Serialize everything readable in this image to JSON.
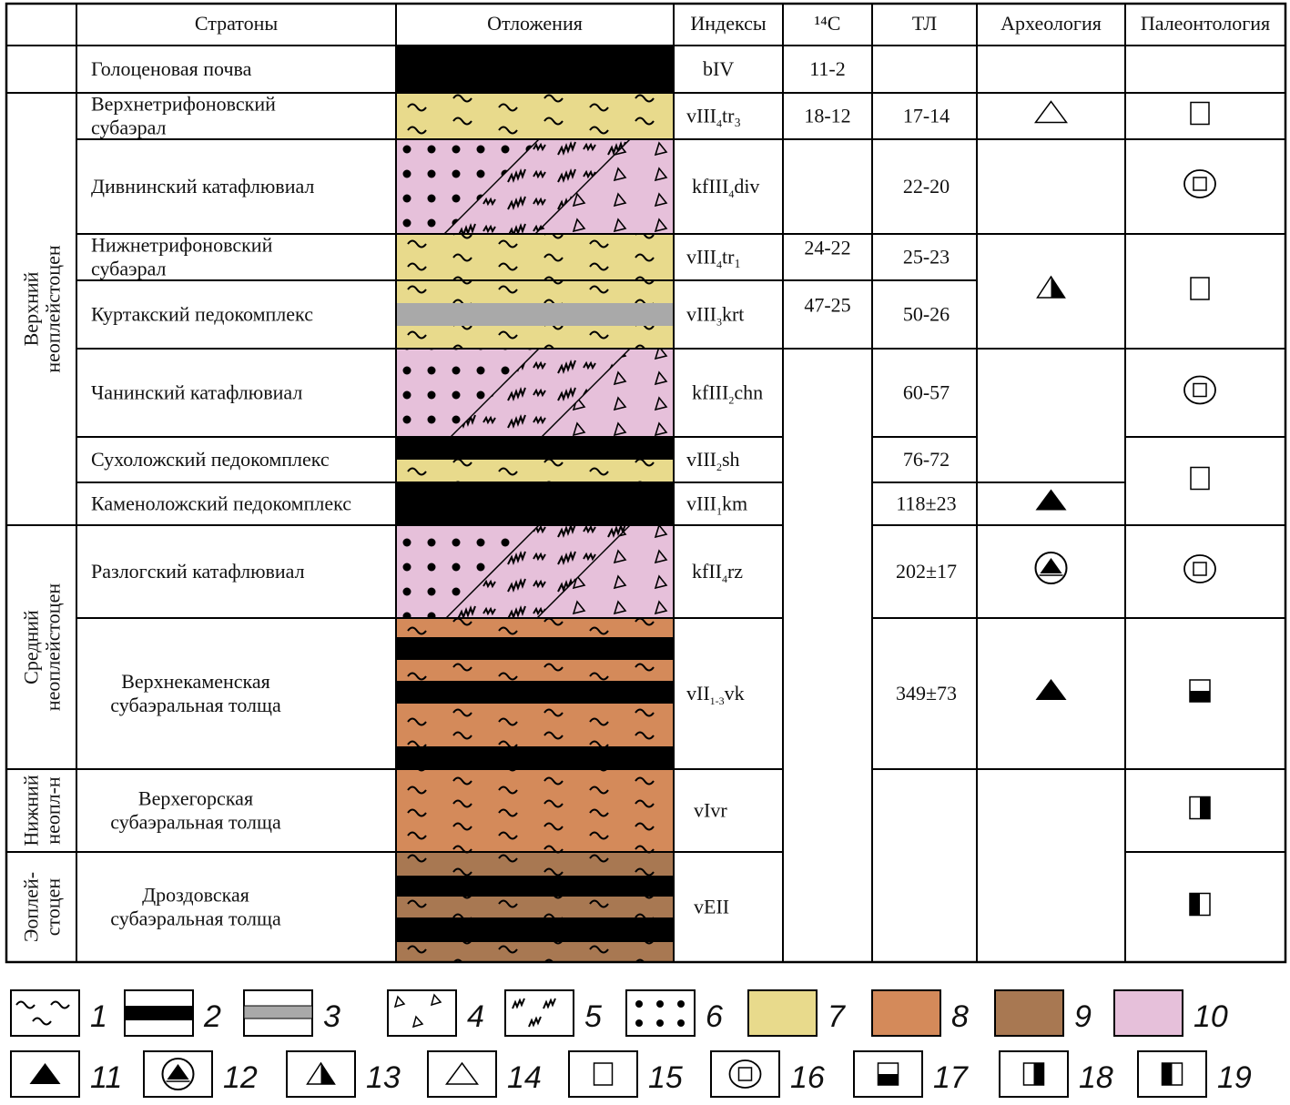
{
  "header": {
    "stratons": "Стратоны",
    "deposits": "Отложения",
    "indexes": "Индексы",
    "c14": "¹⁴C",
    "tl": "ТЛ",
    "archaeology": "Археология",
    "paleontology": "Палеонтология"
  },
  "groups": [
    {
      "lines": [
        "Верхний",
        "неоплейстоцен"
      ]
    },
    {
      "lines": [
        "Средний",
        "неоплейстоцен"
      ]
    },
    {
      "lines": [
        "Нижний",
        "неопл-н"
      ]
    },
    {
      "lines": [
        "Эоплей-",
        "стоцен"
      ]
    }
  ],
  "rows": [
    {
      "name": [
        "Голоценовая почва"
      ],
      "index": {
        "base": "bIV",
        "sub": "",
        "suffix": ""
      },
      "c14": "11-2",
      "tl": ""
    },
    {
      "name": [
        "Верхнетрифоновский",
        "субаэрал"
      ],
      "index": {
        "base": "vIII",
        "sub": "4",
        "suffix": "tr₃"
      },
      "c14": "18-12",
      "tl": "17-14"
    },
    {
      "name": [
        "Дивнинский катафлювиал"
      ],
      "index": {
        "base": "kfIII",
        "sub": "4",
        "suffix": "div"
      },
      "c14": "",
      "tl": "22-20"
    },
    {
      "name": [
        "Нижнетрифоновский",
        "субаэрал"
      ],
      "index": {
        "base": "vIII",
        "sub": "4",
        "suffix": "tr₁"
      },
      "c14": "24-22",
      "tl": "25-23"
    },
    {
      "name": [
        "Куртакский педокомплекс"
      ],
      "index": {
        "base": "vIII",
        "sub": "3",
        "suffix": "krt"
      },
      "c14": "47-25",
      "tl": "50-26"
    },
    {
      "name": [
        "Чанинский катафлювиал"
      ],
      "index": {
        "base": "kfIII",
        "sub": "2",
        "suffix": "chn"
      },
      "c14": "",
      "tl": "60-57"
    },
    {
      "name": [
        "Сухоложский педокомплекс"
      ],
      "index": {
        "base": "vIII",
        "sub": "2",
        "suffix": "sh"
      },
      "c14": "",
      "tl": "76-72"
    },
    {
      "name": [
        "Каменоложский педокомплекс"
      ],
      "index": {
        "base": "vIII",
        "sub": "1",
        "suffix": "km"
      },
      "c14": "",
      "tl": "118±23"
    },
    {
      "name": [
        "Разлогский катафлювиал"
      ],
      "index": {
        "base": "kfII",
        "sub": "4",
        "suffix": "rz"
      },
      "c14": "",
      "tl": "202±17"
    },
    {
      "name": [
        "Верхнекаменская",
        "субаэральная толща"
      ],
      "index": {
        "base": "vII",
        "sub": "1-3",
        "suffix": "vk"
      },
      "c14": "",
      "tl": "349±73"
    },
    {
      "name": [
        "Верхегорская",
        "субаэральная толща"
      ],
      "index": {
        "base": "vIvr",
        "sub": "",
        "suffix": ""
      },
      "c14": "",
      "tl": ""
    },
    {
      "name": [
        "Дроздовская",
        "субаэральная толща"
      ],
      "index": {
        "base": "vEII",
        "sub": "",
        "suffix": ""
      },
      "c14": "",
      "tl": ""
    }
  ],
  "archaeology": [
    "",
    "triangle-outline-icon",
    "",
    "triangle-half-icon",
    "",
    "triangle-filled-icon",
    "triangle-circle-icon",
    "triangle-filled-icon",
    ""
  ],
  "paleontology": [
    "",
    "rect-outline-icon",
    "rect-circle-icon",
    "rect-outline-icon",
    "rect-circle-icon",
    "rect-outline-icon",
    "rect-circle-icon",
    "rect-bottom-half-icon",
    "rect-right-half-icon",
    "rect-left-half-icon"
  ],
  "colors": {
    "yellow": "#e8da8c",
    "pink": "#e6c0da",
    "orange": "#d48a5a",
    "brown": "#a87852",
    "gray": "#a9a9a9",
    "black": "#000000"
  },
  "legend": [
    {
      "num": "1",
      "kind": "tilde"
    },
    {
      "num": "2",
      "kind": "black-band"
    },
    {
      "num": "3",
      "kind": "gray-band"
    },
    {
      "num": "4",
      "kind": "triangles"
    },
    {
      "num": "5",
      "kind": "zigzag"
    },
    {
      "num": "6",
      "kind": "dots"
    },
    {
      "num": "7",
      "kind": "yellow"
    },
    {
      "num": "8",
      "kind": "orange"
    },
    {
      "num": "9",
      "kind": "brown"
    },
    {
      "num": "10",
      "kind": "pink"
    },
    {
      "num": "11",
      "kind": "triangle-filled-icon"
    },
    {
      "num": "12",
      "kind": "triangle-circle-icon"
    },
    {
      "num": "13",
      "kind": "triangle-half-icon"
    },
    {
      "num": "14",
      "kind": "triangle-outline-icon"
    },
    {
      "num": "15",
      "kind": "rect-outline-icon"
    },
    {
      "num": "16",
      "kind": "rect-circle-icon"
    },
    {
      "num": "17",
      "kind": "rect-bottom-half-icon"
    },
    {
      "num": "18",
      "kind": "rect-right-half-icon"
    },
    {
      "num": "19",
      "kind": "rect-left-half-icon"
    }
  ]
}
